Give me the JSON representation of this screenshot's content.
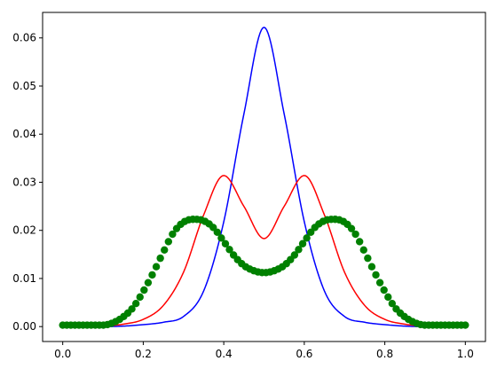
{
  "chart_data": {
    "type": "line",
    "title": "",
    "xlabel": "",
    "ylabel": "",
    "xlim": [
      -0.05,
      1.05
    ],
    "ylim": [
      -0.0031,
      0.0653
    ],
    "xticks": [
      0.0,
      0.2,
      0.4,
      0.6,
      0.8,
      1.0
    ],
    "xtick_labels": [
      "0.0",
      "0.2",
      "0.4",
      "0.6",
      "0.8",
      "1.0"
    ],
    "yticks": [
      0.0,
      0.01,
      0.02,
      0.03,
      0.04,
      0.05,
      0.06
    ],
    "ytick_labels": [
      "0.00",
      "0.01",
      "0.02",
      "0.03",
      "0.04",
      "0.05",
      "0.06"
    ],
    "grid": false,
    "series": [
      {
        "color": "#0000ff",
        "style": "line",
        "x": [
          0.0,
          0.1,
          0.15,
          0.2,
          0.25,
          0.3,
          0.35,
          0.4,
          0.45,
          0.5,
          0.55,
          0.6,
          0.65,
          0.7,
          0.75,
          0.8,
          0.85,
          0.9,
          1.0
        ],
        "y": [
          0.0,
          0.0,
          0.0001,
          0.0004,
          0.0009,
          0.0021,
          0.0074,
          0.0218,
          0.0442,
          0.0622,
          0.0442,
          0.0218,
          0.0074,
          0.0021,
          0.0009,
          0.0004,
          0.0001,
          0.0,
          0.0
        ]
      },
      {
        "color": "#ff0000",
        "style": "line",
        "x": [
          0.0,
          0.1,
          0.15,
          0.2,
          0.25,
          0.3,
          0.35,
          0.4,
          0.45,
          0.5,
          0.55,
          0.6,
          0.65,
          0.7,
          0.75,
          0.8,
          0.85,
          0.9,
          1.0
        ],
        "y": [
          0.0,
          0.0001,
          0.0005,
          0.0015,
          0.0044,
          0.0113,
          0.0232,
          0.0314,
          0.025,
          0.0183,
          0.025,
          0.0314,
          0.0232,
          0.0113,
          0.0044,
          0.0015,
          0.0005,
          0.0001,
          0.0
        ]
      },
      {
        "color": "#008000",
        "style": "markers",
        "x": [
          0.0,
          0.05,
          0.1,
          0.125,
          0.15,
          0.175,
          0.2,
          0.225,
          0.25,
          0.275,
          0.3,
          0.325,
          0.35,
          0.375,
          0.4,
          0.425,
          0.45,
          0.475,
          0.5,
          0.525,
          0.55,
          0.575,
          0.6,
          0.625,
          0.65,
          0.675,
          0.7,
          0.725,
          0.75,
          0.775,
          0.8,
          0.825,
          0.85,
          0.875,
          0.9,
          0.95,
          1.0
        ],
        "y": [
          0.0003,
          0.0003,
          0.0003,
          0.0008,
          0.002,
          0.004,
          0.0073,
          0.0112,
          0.0155,
          0.0195,
          0.0217,
          0.0223,
          0.022,
          0.0205,
          0.0177,
          0.0148,
          0.0127,
          0.0116,
          0.0112,
          0.0116,
          0.0127,
          0.0148,
          0.0177,
          0.0205,
          0.022,
          0.0223,
          0.0217,
          0.0195,
          0.0155,
          0.0112,
          0.0073,
          0.004,
          0.002,
          0.0008,
          0.0003,
          0.0003,
          0.0003
        ]
      }
    ]
  }
}
